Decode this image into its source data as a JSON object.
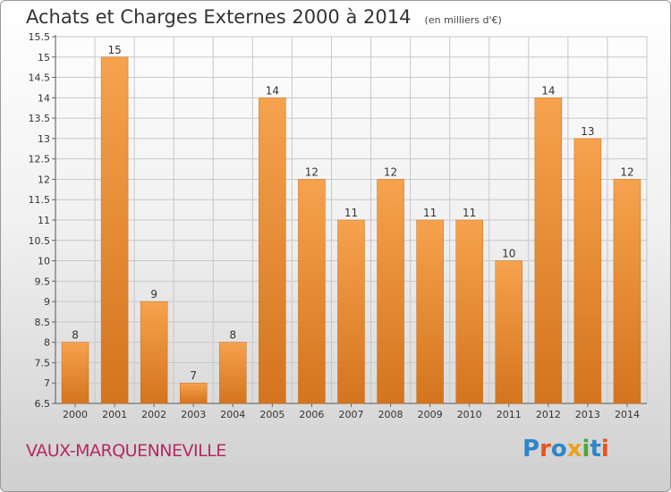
{
  "header": {
    "title": "Achats et Charges Externes 2000 à 2014",
    "unit": "(en milliers d'€)"
  },
  "footer": {
    "town": "VAUX-MARQUENNEVILLE",
    "brand": "Proxiti"
  },
  "colors": {
    "bar_light": "#f6a24e",
    "bar_dark": "#d4741e",
    "grid": "#c8c8c8",
    "town": "#b52a63"
  },
  "chart_data": {
    "type": "bar",
    "categories": [
      "2000",
      "2001",
      "2002",
      "2003",
      "2004",
      "2005",
      "2006",
      "2007",
      "2008",
      "2009",
      "2010",
      "2011",
      "2012",
      "2013",
      "2014"
    ],
    "values": [
      8,
      15,
      9,
      7,
      8,
      14,
      12,
      11,
      12,
      11,
      11,
      10,
      14,
      13,
      12
    ],
    "data_labels": [
      "8",
      "15",
      "9",
      "7",
      "8",
      "14",
      "12",
      "11",
      "12",
      "11",
      "11",
      "10",
      "14",
      "13",
      "12"
    ],
    "ylim": [
      6.5,
      15.5
    ],
    "yticks": [
      "6.5",
      "7",
      "7.5",
      "8",
      "8.5",
      "9",
      "9.5",
      "10",
      "10.5",
      "11",
      "11.5",
      "12",
      "12.5",
      "13",
      "13.5",
      "14",
      "14.5",
      "15",
      "15.5"
    ],
    "grid": true,
    "xlabel": "",
    "ylabel": ""
  }
}
